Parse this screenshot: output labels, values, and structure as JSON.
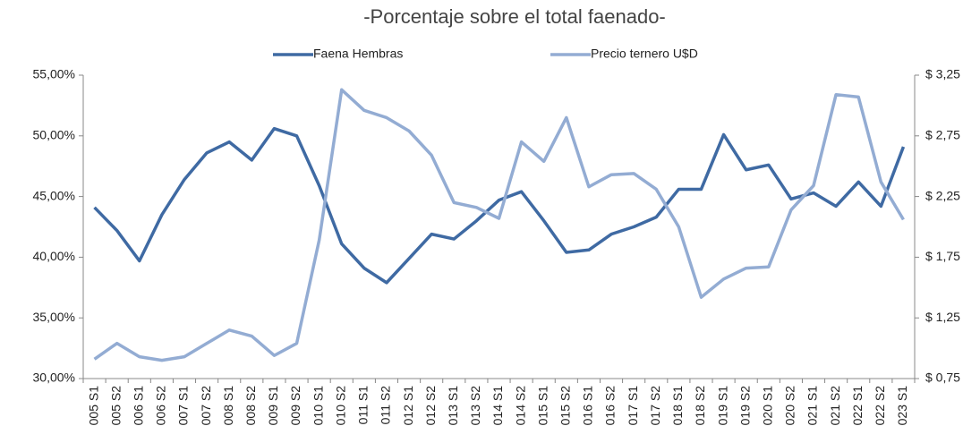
{
  "chart_data": {
    "type": "line",
    "subtitle": "-Porcentaje sobre el total faenado-",
    "categories": [
      "005 S1",
      "005 S2",
      "006 S1",
      "006 S2",
      "007 S1",
      "007 S2",
      "008 S1",
      "008 S2",
      "009 S1",
      "009 S2",
      "010 S1",
      "010 S2",
      "011 S1",
      "011 S2",
      "012 S1",
      "012 S2",
      "013 S1",
      "013 S2",
      "014 S1",
      "014 S2",
      "015 S1",
      "015 S2",
      "016 S1",
      "016 S2",
      "017 S1",
      "017 S2",
      "018 S1",
      "018 S2",
      "019 S1",
      "019 S2",
      "020 S1",
      "020 S2",
      "021 S1",
      "021 S2",
      "022 S1",
      "022 S2",
      "023 S1"
    ],
    "series": [
      {
        "name": "Faena Hembras",
        "color": "#3f6aa3",
        "values": [
          44.1,
          42.2,
          39.7,
          43.5,
          46.4,
          48.6,
          49.5,
          48.0,
          50.6,
          50.0,
          45.9,
          41.1,
          39.1,
          37.9,
          39.9,
          41.9,
          41.5,
          43.0,
          44.7,
          45.4,
          43.0,
          40.4,
          40.6,
          41.9,
          42.5,
          43.3,
          45.6,
          45.6,
          50.1,
          47.2,
          47.6,
          44.8,
          45.3,
          44.2,
          46.2,
          44.2,
          49.1
        ]
      },
      {
        "name": "Precio ternero U$D",
        "color": "#93acd3",
        "axis": "y2",
        "values": [
          0.91,
          1.04,
          0.93,
          0.9,
          0.93,
          1.04,
          1.15,
          1.1,
          0.94,
          1.04,
          1.89,
          3.13,
          2.96,
          2.9,
          2.79,
          2.59,
          2.2,
          2.16,
          2.07,
          2.7,
          2.54,
          2.9,
          2.33,
          2.43,
          2.44,
          2.31,
          2.0,
          1.42,
          1.57,
          1.66,
          1.67,
          2.14,
          2.34,
          3.09,
          3.07,
          2.37,
          2.06
        ]
      }
    ],
    "ylim": [
      30,
      55
    ],
    "yticks": [
      {
        "value": 30,
        "label": "30,00%"
      },
      {
        "value": 35,
        "label": "35,00%"
      },
      {
        "value": 40,
        "label": "40,00%"
      },
      {
        "value": 45,
        "label": "45,00%"
      },
      {
        "value": 50,
        "label": "50,00%"
      },
      {
        "value": 55,
        "label": "55,00%"
      }
    ],
    "y2lim": [
      0.75,
      3.25
    ],
    "y2ticks": [
      {
        "value": 0.75,
        "label": "$ 0,75"
      },
      {
        "value": 1.25,
        "label": "$ 1,25"
      },
      {
        "value": 1.75,
        "label": "$ 1,75"
      },
      {
        "value": 2.25,
        "label": "$ 2,25"
      },
      {
        "value": 2.75,
        "label": "$ 2,75"
      },
      {
        "value": 3.25,
        "label": "$ 3,25"
      }
    ],
    "legend": "top"
  }
}
